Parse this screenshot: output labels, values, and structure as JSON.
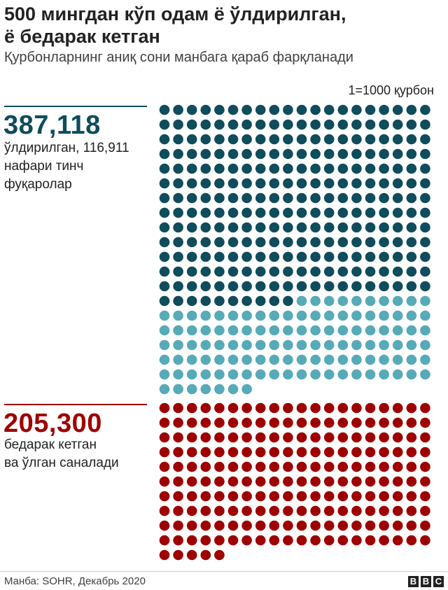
{
  "header": {
    "title_line1": "500 мингдан кўп одам ё ўлдирилган,",
    "title_line2": "ё бедарак кетган",
    "subtitle": "Қурбонларнинг аниқ сони манбага қараб фарқланади"
  },
  "legend": {
    "scale_note": "1=1000 қурбон"
  },
  "colors": {
    "killed": "#0f4c5c",
    "civilians": "#57aab8",
    "missing": "#9e0000"
  },
  "chart_data": {
    "type": "waffle",
    "unit": "1=1000 қурбон",
    "groups": [
      {
        "value_label": "387,118",
        "description": [
          "ўлдирилган, 116,911",
          "нафари тинч",
          "фуқаролар"
        ],
        "total": 387118,
        "civilians": 116911,
        "dots_total": 387,
        "dots_civilian": 117,
        "columns": 20,
        "split_colors": [
          "killed",
          "civilians"
        ]
      },
      {
        "value_label": "205,300",
        "description": [
          "бедарак кетган",
          "ва ўлган саналади"
        ],
        "total": 205300,
        "dots_total": 205,
        "columns": 20,
        "split_colors": [
          "missing"
        ]
      }
    ]
  },
  "footer": {
    "source": "Манба: SOHR, Декабрь 2020",
    "logo_letters": [
      "B",
      "B",
      "C"
    ]
  }
}
